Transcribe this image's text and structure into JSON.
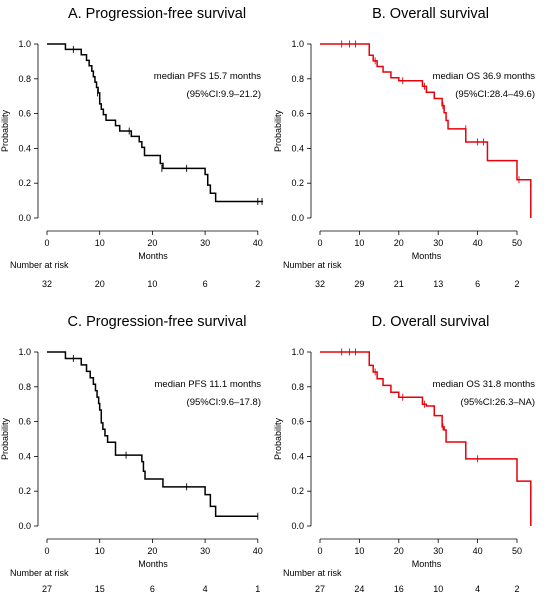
{
  "chart_data": [
    {
      "type": "line",
      "subtype": "kaplan-meier",
      "title": "A. Progression-free survival",
      "xlabel": "Months",
      "ylabel": "Probability",
      "xlim": [
        0,
        41
      ],
      "ylim": [
        0,
        1.0
      ],
      "x_ticks": [
        0,
        10,
        20,
        30,
        40
      ],
      "y_ticks": [
        "0.0",
        "0.2",
        "0.4",
        "0.6",
        "0.8",
        "1.0"
      ],
      "grid": false,
      "color": "#000000",
      "steps": [
        [
          0,
          1.0
        ],
        [
          3.5,
          0.969
        ],
        [
          6.5,
          0.938
        ],
        [
          7.5,
          0.906
        ],
        [
          8,
          0.875
        ],
        [
          8.5,
          0.844
        ],
        [
          8.8,
          0.812
        ],
        [
          9.1,
          0.781
        ],
        [
          9.4,
          0.75
        ],
        [
          9.7,
          0.719
        ],
        [
          10,
          0.656
        ],
        [
          10.3,
          0.625
        ],
        [
          10.7,
          0.594
        ],
        [
          11.2,
          0.562
        ],
        [
          13,
          0.531
        ],
        [
          13.8,
          0.5
        ],
        [
          16,
          0.469
        ],
        [
          17.5,
          0.438
        ],
        [
          18,
          0.406
        ],
        [
          18.5,
          0.359
        ],
        [
          21.5,
          0.313
        ],
        [
          22,
          0.285
        ],
        [
          30,
          0.25
        ],
        [
          30.5,
          0.189
        ],
        [
          31,
          0.142
        ],
        [
          32,
          0.095
        ],
        [
          41,
          0.095
        ]
      ],
      "censored": [
        [
          5,
          0.969
        ],
        [
          9.6,
          0.719
        ],
        [
          15.6,
          0.5
        ],
        [
          21.8,
          0.285
        ],
        [
          26.5,
          0.285
        ],
        [
          40,
          0.095
        ],
        [
          40.8,
          0.095
        ]
      ],
      "annotation": [
        "median PFS 15.7 months",
        "(95%CI:9.9–21.2)"
      ],
      "risk_label": "Number at risk",
      "risk_times": [
        0,
        10,
        20,
        30,
        40
      ],
      "risk_counts": [
        "32",
        "20",
        "10",
        "6",
        "2"
      ]
    },
    {
      "type": "line",
      "subtype": "kaplan-meier",
      "title": "B. Overall survival",
      "xlabel": "Months",
      "ylabel": "Probability",
      "xlim": [
        0,
        54
      ],
      "ylim": [
        0,
        1.0
      ],
      "x_ticks": [
        0,
        10,
        20,
        30,
        40,
        50
      ],
      "y_ticks": [
        "0.0",
        "0.2",
        "0.4",
        "0.6",
        "0.8",
        "1.0"
      ],
      "grid": false,
      "color": "#e8000b",
      "steps": [
        [
          0,
          1.0
        ],
        [
          12.5,
          0.935
        ],
        [
          13.5,
          0.903
        ],
        [
          14.5,
          0.871
        ],
        [
          16,
          0.839
        ],
        [
          18,
          0.806
        ],
        [
          20,
          0.789
        ],
        [
          26,
          0.757
        ],
        [
          27,
          0.723
        ],
        [
          29,
          0.687
        ],
        [
          31,
          0.646
        ],
        [
          31.5,
          0.605
        ],
        [
          32,
          0.56
        ],
        [
          32.5,
          0.512
        ],
        [
          36.5,
          0.512
        ],
        [
          37,
          0.437
        ],
        [
          42.5,
          0.33
        ],
        [
          50,
          0.22
        ],
        [
          53,
          0.22
        ],
        [
          53.5,
          0.0
        ]
      ],
      "censored": [
        [
          5.5,
          1.0
        ],
        [
          7.5,
          1.0
        ],
        [
          9,
          1.0
        ],
        [
          14,
          0.903
        ],
        [
          21,
          0.789
        ],
        [
          26.5,
          0.757
        ],
        [
          31.2,
          0.646
        ],
        [
          37,
          0.512
        ],
        [
          40,
          0.437
        ],
        [
          41.5,
          0.437
        ],
        [
          50.5,
          0.22
        ]
      ],
      "annotation": [
        "median OS 36.9 months",
        "(95%CI:28.4–49.6)"
      ],
      "risk_label": "Number at risk",
      "risk_times": [
        0,
        10,
        20,
        30,
        40,
        50
      ],
      "risk_counts": [
        "32",
        "29",
        "21",
        "13",
        "6",
        "2"
      ]
    },
    {
      "type": "line",
      "subtype": "kaplan-meier",
      "title": "C. Progression-free survival",
      "xlabel": "Months",
      "ylabel": "Probability",
      "xlim": [
        0,
        41
      ],
      "ylim": [
        0,
        1.0
      ],
      "x_ticks": [
        0,
        10,
        20,
        30,
        40
      ],
      "y_ticks": [
        "0.0",
        "0.2",
        "0.4",
        "0.6",
        "0.8",
        "1.0"
      ],
      "grid": false,
      "color": "#000000",
      "steps": [
        [
          0,
          1.0
        ],
        [
          3.5,
          0.963
        ],
        [
          6.5,
          0.926
        ],
        [
          7.5,
          0.889
        ],
        [
          8.2,
          0.852
        ],
        [
          8.8,
          0.815
        ],
        [
          9.2,
          0.778
        ],
        [
          9.5,
          0.741
        ],
        [
          9.8,
          0.704
        ],
        [
          10,
          0.667
        ],
        [
          10.3,
          0.593
        ],
        [
          10.6,
          0.556
        ],
        [
          11,
          0.519
        ],
        [
          11.5,
          0.481
        ],
        [
          13,
          0.407
        ],
        [
          18,
          0.37
        ],
        [
          18.3,
          0.315
        ],
        [
          18.6,
          0.27
        ],
        [
          22,
          0.225
        ],
        [
          30,
          0.18
        ],
        [
          31,
          0.113
        ],
        [
          32,
          0.056
        ],
        [
          40,
          0.056
        ]
      ],
      "censored": [
        [
          5,
          0.963
        ],
        [
          15,
          0.407
        ],
        [
          26.5,
          0.225
        ],
        [
          40,
          0.056
        ]
      ],
      "annotation": [
        "median PFS 11.1 months",
        "(95%CI:9.6–17.8)"
      ],
      "risk_label": "Number at risk",
      "risk_times": [
        0,
        10,
        20,
        30,
        40
      ],
      "risk_counts": [
        "27",
        "15",
        "6",
        "4",
        "1"
      ]
    },
    {
      "type": "line",
      "subtype": "kaplan-meier",
      "title": "D. Overall survival",
      "xlabel": "Months",
      "ylabel": "Probability",
      "xlim": [
        0,
        54
      ],
      "ylim": [
        0,
        1.0
      ],
      "x_ticks": [
        0,
        10,
        20,
        30,
        40,
        50
      ],
      "y_ticks": [
        "0.0",
        "0.2",
        "0.4",
        "0.6",
        "0.8",
        "1.0"
      ],
      "grid": false,
      "color": "#e8000b",
      "steps": [
        [
          0,
          1.0
        ],
        [
          12.5,
          0.923
        ],
        [
          13.5,
          0.885
        ],
        [
          14.5,
          0.846
        ],
        [
          16,
          0.808
        ],
        [
          18,
          0.769
        ],
        [
          20,
          0.74
        ],
        [
          26,
          0.7
        ],
        [
          27,
          0.69
        ],
        [
          29,
          0.634
        ],
        [
          31,
          0.57
        ],
        [
          31.5,
          0.552
        ],
        [
          32,
          0.483
        ],
        [
          37,
          0.386
        ],
        [
          50,
          0.258
        ],
        [
          53,
          0.258
        ],
        [
          53.5,
          0.0
        ]
      ],
      "censored": [
        [
          5.5,
          1.0
        ],
        [
          7.5,
          1.0
        ],
        [
          9,
          1.0
        ],
        [
          14,
          0.885
        ],
        [
          21,
          0.74
        ],
        [
          26.5,
          0.7
        ],
        [
          31.2,
          0.57
        ],
        [
          40,
          0.386
        ]
      ],
      "annotation": [
        "median OS 31.8 months",
        "(95%CI:26.3–NA)"
      ],
      "risk_label": "Number at risk",
      "risk_times": [
        0,
        10,
        20,
        30,
        40,
        50
      ],
      "risk_counts": [
        "27",
        "24",
        "16",
        "10",
        "4",
        "2"
      ]
    }
  ]
}
